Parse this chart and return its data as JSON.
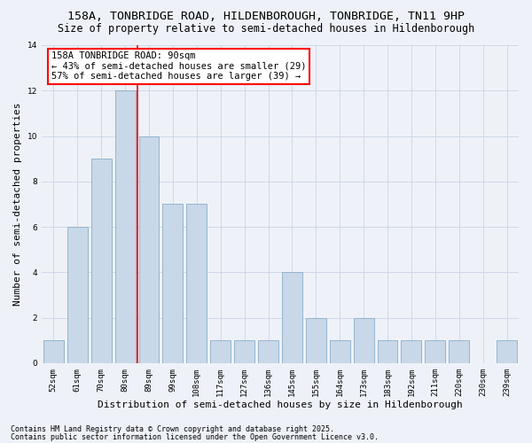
{
  "title1": "158A, TONBRIDGE ROAD, HILDENBOROUGH, TONBRIDGE, TN11 9HP",
  "title2": "Size of property relative to semi-detached houses in Hildenborough",
  "xlabel": "Distribution of semi-detached houses by size in Hildenborough",
  "ylabel": "Number of semi-detached properties",
  "categories": [
    "52sqm",
    "61sqm",
    "70sqm",
    "80sqm",
    "89sqm",
    "99sqm",
    "108sqm",
    "117sqm",
    "127sqm",
    "136sqm",
    "145sqm",
    "155sqm",
    "164sqm",
    "173sqm",
    "183sqm",
    "192sqm",
    "211sqm",
    "220sqm",
    "230sqm",
    "239sqm"
  ],
  "values": [
    1,
    6,
    9,
    12,
    10,
    7,
    7,
    1,
    1,
    1,
    4,
    2,
    1,
    2,
    1,
    1,
    1,
    1,
    0,
    1
  ],
  "bar_color": "#c8d8e8",
  "bar_edgecolor": "#8aacc8",
  "vline_x": 3.5,
  "vline_color": "red",
  "annotation_text": "158A TONBRIDGE ROAD: 90sqm\n← 43% of semi-detached houses are smaller (29)\n57% of semi-detached houses are larger (39) →",
  "annotation_box_color": "white",
  "annotation_box_edgecolor": "red",
  "ylim": [
    0,
    14
  ],
  "yticks": [
    0,
    2,
    4,
    6,
    8,
    10,
    12,
    14
  ],
  "grid_color": "#d0d8e8",
  "background_color": "#eef2f8",
  "footer1": "Contains HM Land Registry data © Crown copyright and database right 2025.",
  "footer2": "Contains public sector information licensed under the Open Government Licence v3.0.",
  "title_fontsize": 9.5,
  "subtitle_fontsize": 8.5,
  "tick_fontsize": 6.5,
  "label_fontsize": 8,
  "footer_fontsize": 6,
  "annotation_fontsize": 7.5
}
